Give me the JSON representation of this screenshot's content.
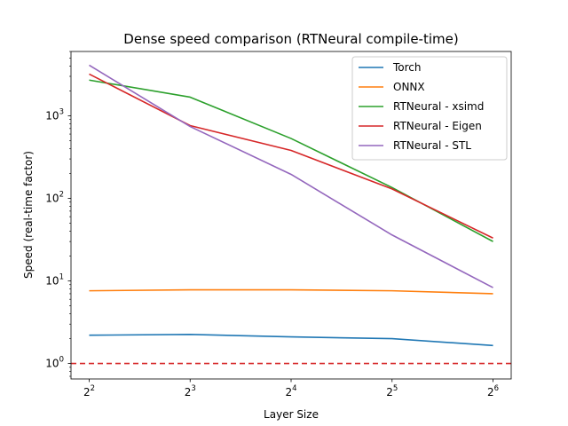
{
  "chart_data": {
    "type": "line",
    "title": "Dense speed comparison (RTNeural compile-time)",
    "xlabel": "Layer Size",
    "ylabel": "Speed (real-time factor)",
    "x_scale": "log2",
    "y_scale": "log10",
    "x": [
      4,
      8,
      16,
      32,
      64
    ],
    "x_tick_labels": [
      {
        "base": "2",
        "exp": "2"
      },
      {
        "base": "2",
        "exp": "3"
      },
      {
        "base": "2",
        "exp": "4"
      },
      {
        "base": "2",
        "exp": "5"
      },
      {
        "base": "2",
        "exp": "6"
      }
    ],
    "y_tick_labels": [
      {
        "base": "10",
        "exp": "0",
        "value": 1
      },
      {
        "base": "10",
        "exp": "1",
        "value": 10
      },
      {
        "base": "10",
        "exp": "2",
        "value": 100
      },
      {
        "base": "10",
        "exp": "3",
        "value": 1000
      }
    ],
    "ylim": [
      0.65,
      6000
    ],
    "grid": false,
    "legend_position": "top-right",
    "series": [
      {
        "name": "Torch",
        "color": "#1f77b4",
        "values": [
          2.2,
          2.25,
          2.1,
          2.0,
          1.65
        ]
      },
      {
        "name": "ONNX",
        "color": "#ff7f0e",
        "values": [
          7.6,
          7.8,
          7.8,
          7.6,
          7.0
        ]
      },
      {
        "name": "RTNeural - xsimd",
        "color": "#2ca02c",
        "values": [
          2700,
          1680,
          530,
          135,
          30
        ]
      },
      {
        "name": "RTNeural - Eigen",
        "color": "#d62728",
        "values": [
          3200,
          760,
          380,
          130,
          33
        ]
      },
      {
        "name": "RTNeural - STL",
        "color": "#9467bd",
        "values": [
          4100,
          740,
          195,
          36,
          8.3
        ]
      }
    ],
    "reference_line": {
      "y": 1,
      "color": "#d62728",
      "style": "dashed"
    }
  }
}
